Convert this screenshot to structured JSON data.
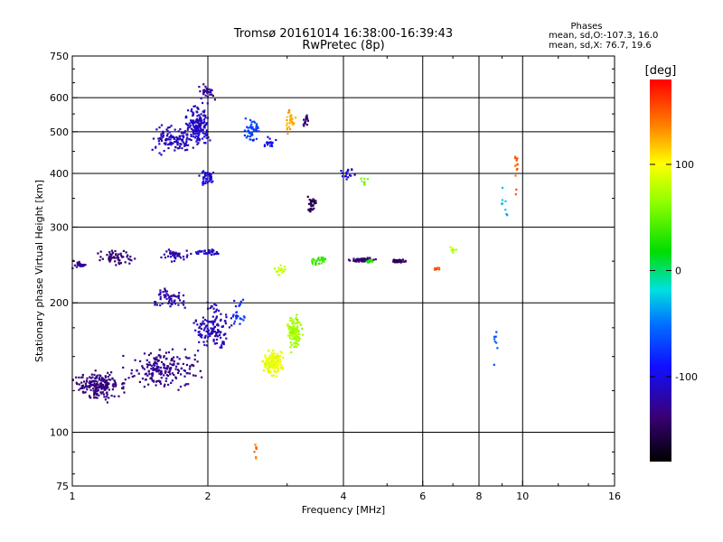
{
  "chart_data": {
    "type": "scatter",
    "title": "Tromsø 20161014 16:38:00-16:39:43",
    "subtitle": "RwPretec (8p)",
    "xlabel": "Frequency [MHz]",
    "ylabel": "Stationary phase Virtual Height [km]",
    "x_scale": "log",
    "y_scale": "log",
    "xlim": [
      1,
      16
    ],
    "ylim": [
      75,
      750
    ],
    "xticks": [
      1,
      2,
      4,
      6,
      8,
      10,
      16
    ],
    "xtick_labels": [
      "1",
      "2",
      "4",
      "6",
      "8",
      "10",
      "16"
    ],
    "yticks": [
      75,
      100,
      200,
      300,
      400,
      500,
      600,
      750
    ],
    "ytick_labels": [
      "75",
      "100",
      "200",
      "300",
      "400",
      "500",
      "600",
      "750"
    ],
    "x_grid": [
      2,
      4,
      6,
      8,
      10
    ],
    "y_grid": [
      100,
      200,
      300,
      400,
      500,
      600
    ],
    "stats": {
      "heading": "Phases",
      "line_o": "mean, sd,O:-107.3, 16.0",
      "line_x": "mean, sd,X:  76.7, 19.6"
    },
    "colorbar": {
      "label": "[deg]",
      "min": -180,
      "max": 180,
      "ticks": [
        100,
        0,
        -100
      ],
      "tick_labels": [
        "100",
        "0",
        "-100"
      ]
    },
    "series": [
      {
        "x": 1.03,
        "y": 245,
        "phase": -125,
        "n": 25,
        "dx": 0.08,
        "dy": 0.03
      },
      {
        "x": 1.25,
        "y": 255,
        "phase": -140,
        "n": 60,
        "dx": 0.12,
        "dy": 0.05
      },
      {
        "x": 1.7,
        "y": 258,
        "phase": -120,
        "n": 40,
        "dx": 0.08,
        "dy": 0.04
      },
      {
        "x": 2.02,
        "y": 262,
        "phase": -110,
        "n": 35,
        "dx": 0.12,
        "dy": 0.02
      },
      {
        "x": 1.15,
        "y": 128,
        "phase": -135,
        "n": 200,
        "dx": 0.17,
        "dy": 0.1
      },
      {
        "x": 1.6,
        "y": 140,
        "phase": -130,
        "n": 200,
        "dx": 0.25,
        "dy": 0.13
      },
      {
        "x": 1.65,
        "y": 205,
        "phase": -120,
        "n": 60,
        "dx": 0.12,
        "dy": 0.07
      },
      {
        "x": 2.05,
        "y": 175,
        "phase": -115,
        "n": 140,
        "dx": 0.12,
        "dy": 0.16
      },
      {
        "x": 2.35,
        "y": 190,
        "phase": -80,
        "n": 25,
        "dx": 0.06,
        "dy": 0.12
      },
      {
        "x": 1.68,
        "y": 480,
        "phase": -115,
        "n": 120,
        "dx": 0.15,
        "dy": 0.1
      },
      {
        "x": 1.9,
        "y": 520,
        "phase": -110,
        "n": 160,
        "dx": 0.08,
        "dy": 0.14
      },
      {
        "x": 2.0,
        "y": 390,
        "phase": -105,
        "n": 40,
        "dx": 0.06,
        "dy": 0.06
      },
      {
        "x": 2.5,
        "y": 510,
        "phase": -70,
        "n": 45,
        "dx": 0.06,
        "dy": 0.1
      },
      {
        "x": 2.75,
        "y": 470,
        "phase": -95,
        "n": 18,
        "dx": 0.05,
        "dy": 0.04
      },
      {
        "x": 3.05,
        "y": 530,
        "phase": 125,
        "n": 30,
        "dx": 0.03,
        "dy": 0.09
      },
      {
        "x": 3.3,
        "y": 530,
        "phase": -140,
        "n": 15,
        "dx": 0.02,
        "dy": 0.05
      },
      {
        "x": 2.78,
        "y": 145,
        "phase": 95,
        "n": 140,
        "dx": 0.08,
        "dy": 0.09
      },
      {
        "x": 3.12,
        "y": 170,
        "phase": 70,
        "n": 110,
        "dx": 0.05,
        "dy": 0.11
      },
      {
        "x": 2.9,
        "y": 240,
        "phase": 80,
        "n": 15,
        "dx": 0.05,
        "dy": 0.04
      },
      {
        "x": 3.55,
        "y": 250,
        "phase": 35,
        "n": 30,
        "dx": 0.06,
        "dy": 0.03
      },
      {
        "x": 3.4,
        "y": 340,
        "phase": -150,
        "n": 30,
        "dx": 0.04,
        "dy": 0.07
      },
      {
        "x": 4.4,
        "y": 252,
        "phase": -140,
        "n": 60,
        "dx": 0.08,
        "dy": 0.015
      },
      {
        "x": 5.3,
        "y": 250,
        "phase": -145,
        "n": 40,
        "dx": 0.05,
        "dy": 0.015
      },
      {
        "x": 4.6,
        "y": 250,
        "phase": 30,
        "n": 15,
        "dx": 0.04,
        "dy": 0.015
      },
      {
        "x": 4.1,
        "y": 400,
        "phase": -110,
        "n": 18,
        "dx": 0.05,
        "dy": 0.05
      },
      {
        "x": 4.45,
        "y": 380,
        "phase": 60,
        "n": 10,
        "dx": 0.04,
        "dy": 0.04
      },
      {
        "x": 6.5,
        "y": 240,
        "phase": 150,
        "n": 14,
        "dx": 0.03,
        "dy": 0.01
      },
      {
        "x": 7.0,
        "y": 265,
        "phase": 75,
        "n": 6,
        "dx": 0.06,
        "dy": 0.03
      },
      {
        "x": 9.7,
        "y": 420,
        "phase": 150,
        "n": 12,
        "dx": 0.02,
        "dy": 0.2
      },
      {
        "x": 9.1,
        "y": 330,
        "phase": -30,
        "n": 8,
        "dx": 0.03,
        "dy": 0.12
      },
      {
        "x": 8.7,
        "y": 160,
        "phase": -60,
        "n": 8,
        "dx": 0.03,
        "dy": 0.15
      },
      {
        "x": 2.55,
        "y": 90,
        "phase": 140,
        "n": 8,
        "dx": 0.01,
        "dy": 0.07
      },
      {
        "x": 2.0,
        "y": 620,
        "phase": -125,
        "n": 30,
        "dx": 0.06,
        "dy": 0.05
      }
    ]
  }
}
